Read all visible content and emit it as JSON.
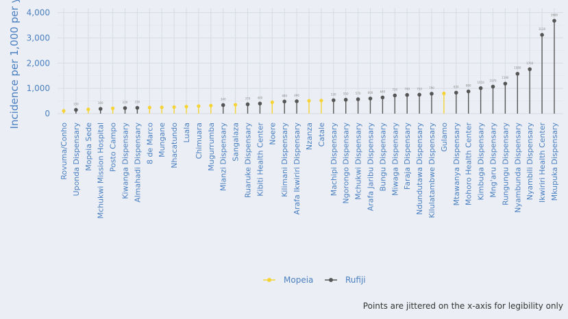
{
  "chart_data": {
    "type": "lollipop",
    "ylabel": "Incidence per 1,000 per y",
    "ylim": [
      0,
      4000
    ],
    "yticks": [
      0,
      1000,
      2000,
      3000,
      4000
    ],
    "ytick_labels": [
      "0",
      "1,000",
      "2,000",
      "3,000",
      "4,000"
    ],
    "grid": true,
    "legend_position": "bottom",
    "caption": "Points are jittered on the x-axis for legibility only",
    "colors": {
      "Mopeia": "#f5d335",
      "Rufiji": "#555555"
    },
    "series": [
      {
        "name": "Mopeia"
      },
      {
        "name": "Rufiji"
      }
    ],
    "points": [
      {
        "label": "Rovuma/Conho",
        "value": 110,
        "group": "Mopeia"
      },
      {
        "label": "Uponda Dispensary",
        "value": 150,
        "group": "Rufiji"
      },
      {
        "label": "Mopeia Sede",
        "value": 170,
        "group": "Mopeia"
      },
      {
        "label": "Mchukwi Mission Hospital",
        "value": 190,
        "group": "Rufiji"
      },
      {
        "label": "Posto Campo",
        "value": 210,
        "group": "Mopeia"
      },
      {
        "label": "Kiwanga Dispensary",
        "value": 220,
        "group": "Rufiji"
      },
      {
        "label": "Almahadi Dispensary",
        "value": 230,
        "group": "Rufiji"
      },
      {
        "label": "8 de Marco",
        "value": 240,
        "group": "Mopeia"
      },
      {
        "label": "Mungane",
        "value": 250,
        "group": "Mopeia"
      },
      {
        "label": "Nhacatundo",
        "value": 260,
        "group": "Mopeia"
      },
      {
        "label": "Luala",
        "value": 280,
        "group": "Mopeia"
      },
      {
        "label": "Chimuara",
        "value": 300,
        "group": "Mopeia"
      },
      {
        "label": "Mugurrumba",
        "value": 320,
        "group": "Mopeia"
      },
      {
        "label": "Mlanzi Dispensary",
        "value": 340,
        "group": "Rufiji"
      },
      {
        "label": "Sangalaza",
        "value": 350,
        "group": "Mopeia"
      },
      {
        "label": "Ruaruke Dispensary",
        "value": 370,
        "group": "Rufiji"
      },
      {
        "label": "Kibiti Health Center",
        "value": 400,
        "group": "Rufiji"
      },
      {
        "label": "Noere",
        "value": 450,
        "group": "Mopeia"
      },
      {
        "label": "Kilimani Dispensary",
        "value": 480,
        "group": "Rufiji"
      },
      {
        "label": "Arafa Ikwiriri Dispensary",
        "value": 490,
        "group": "Rufiji"
      },
      {
        "label": "Nzanza",
        "value": 510,
        "group": "Mopeia"
      },
      {
        "label": "Catale",
        "value": 520,
        "group": "Mopeia"
      },
      {
        "label": "Machipi Dispensary",
        "value": 530,
        "group": "Rufiji"
      },
      {
        "label": "Ngorongo Dispensary",
        "value": 550,
        "group": "Rufiji"
      },
      {
        "label": "Mchukwi Dispensary",
        "value": 570,
        "group": "Rufiji"
      },
      {
        "label": "Arafa Jaribu Dispensary",
        "value": 600,
        "group": "Rufiji"
      },
      {
        "label": "Bungu Dispensary",
        "value": 640,
        "group": "Rufiji"
      },
      {
        "label": "Miwaga Dispensary",
        "value": 720,
        "group": "Rufiji"
      },
      {
        "label": "Faraja Dispensary",
        "value": 740,
        "group": "Rufiji"
      },
      {
        "label": "Ndundutawa Dispensary",
        "value": 750,
        "group": "Rufiji"
      },
      {
        "label": "Kilulatambwe Dispensary",
        "value": 790,
        "group": "Rufiji"
      },
      {
        "label": "Gulamo",
        "value": 800,
        "group": "Mopeia"
      },
      {
        "label": "Mtawanya Dispensary",
        "value": 830,
        "group": "Rufiji"
      },
      {
        "label": "Mohoro Health Center",
        "value": 880,
        "group": "Rufiji"
      },
      {
        "label": "Kimbuga Dispensary",
        "value": 1010,
        "group": "Rufiji"
      },
      {
        "label": "Mng'aru Dispensary",
        "value": 1070,
        "group": "Rufiji"
      },
      {
        "label": "Rungungu Dispensary",
        "value": 1190,
        "group": "Rufiji"
      },
      {
        "label": "Nyambunda Dispensary",
        "value": 1580,
        "group": "Rufiji"
      },
      {
        "label": "Nyambili Dispensary",
        "value": 1760,
        "group": "Rufiji"
      },
      {
        "label": "Ikwiriri  Health Center",
        "value": 3120,
        "group": "Rufiji"
      },
      {
        "label": "Mkupuka Dispensary",
        "value": 3680,
        "group": "Rufiji"
      }
    ]
  }
}
